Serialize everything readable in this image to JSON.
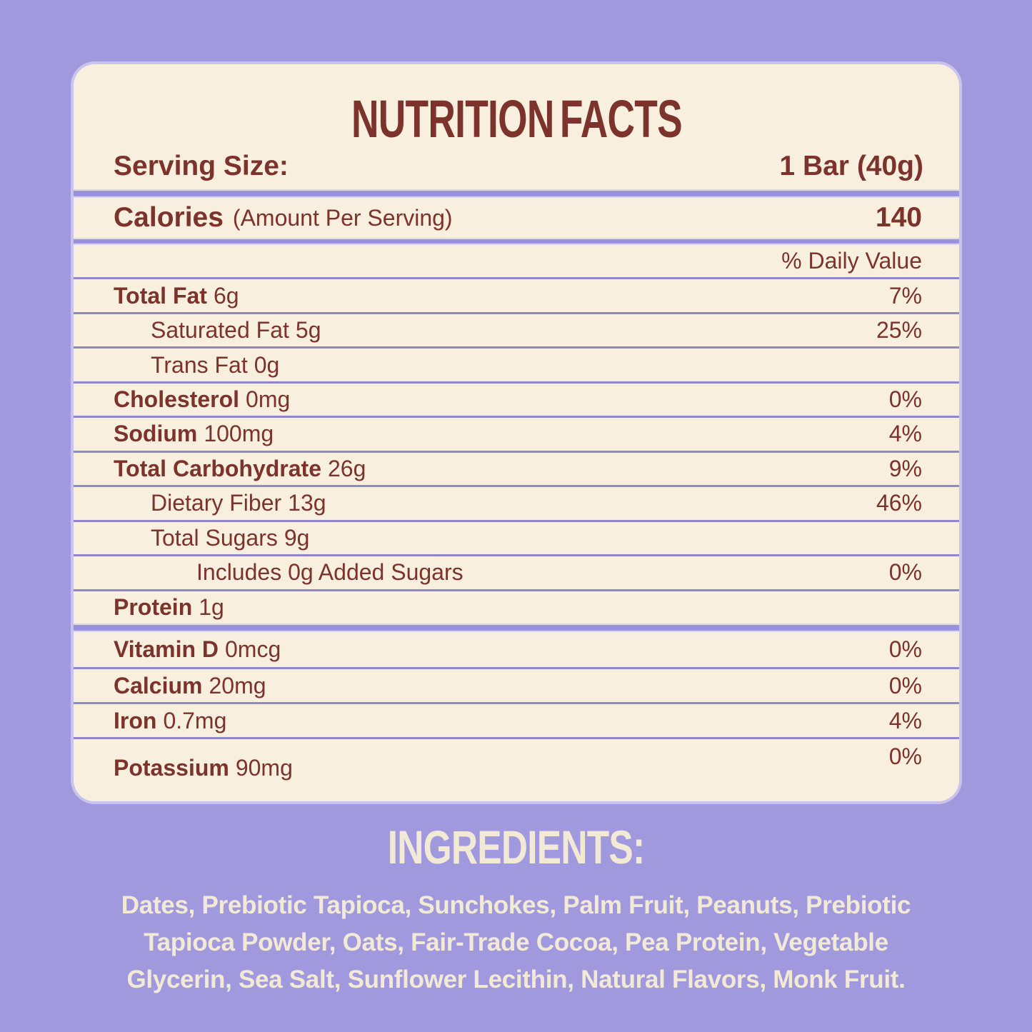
{
  "colors": {
    "background": "#a099de",
    "panel_bg": "#f8efde",
    "text_maroon": "#7c332c",
    "divider": "#8e87ca",
    "gap_stripe": "#9a93dc",
    "gap_edge": "#ddd8f2",
    "cream_text": "#f3ead6"
  },
  "label": {
    "title": "NUTRITION FACTS",
    "serving": {
      "label": "Serving Size:",
      "value": "1 Bar (40g)"
    },
    "calories": {
      "label": "Calories",
      "note": "(Amount Per Serving)",
      "value": "140"
    },
    "daily_value_header": "% Daily Value",
    "nutrients": [
      {
        "name": "Total Fat",
        "amount": "6g",
        "dv": "7%"
      },
      {
        "name": "Saturated Fat",
        "amount": "5g",
        "dv": "25%"
      },
      {
        "name": "Trans Fat",
        "amount": "0g",
        "dv": ""
      },
      {
        "name": "Cholesterol",
        "amount": "0mg",
        "dv": "0%"
      },
      {
        "name": "Sodium",
        "amount": "100mg",
        "dv": "4%"
      },
      {
        "name": "Total Carbohydrate",
        "amount": "26g",
        "dv": "9%"
      },
      {
        "name": "Dietary Fiber",
        "amount": "13g",
        "dv": "46%"
      },
      {
        "name": "Total Sugars",
        "amount": "9g",
        "dv": ""
      },
      {
        "name": "Includes 0g Added Sugars",
        "amount": "",
        "dv": "0%"
      },
      {
        "name": "Protein",
        "amount": "1g",
        "dv": ""
      }
    ],
    "vitamins": [
      {
        "name": "Vitamin D",
        "amount": "0mcg",
        "dv": "0%"
      },
      {
        "name": "Calcium",
        "amount": "20mg",
        "dv": "0%"
      },
      {
        "name": "Iron",
        "amount": "0.7mg",
        "dv": "4%"
      },
      {
        "name": "Potassium",
        "amount": "90mg",
        "dv": "0%"
      }
    ]
  },
  "ingredients": {
    "title": "INGREDIENTS:",
    "lines": [
      "Dates, Prebiotic Tapioca, Sunchokes, Palm Fruit, Peanuts, Prebiotic",
      "Tapioca Powder, Oats, Fair-Trade Cocoa, Pea Protein, Vegetable",
      "Glycerin, Sea Salt, Sunflower Lecithin, Natural Flavors, Monk Fruit."
    ]
  }
}
